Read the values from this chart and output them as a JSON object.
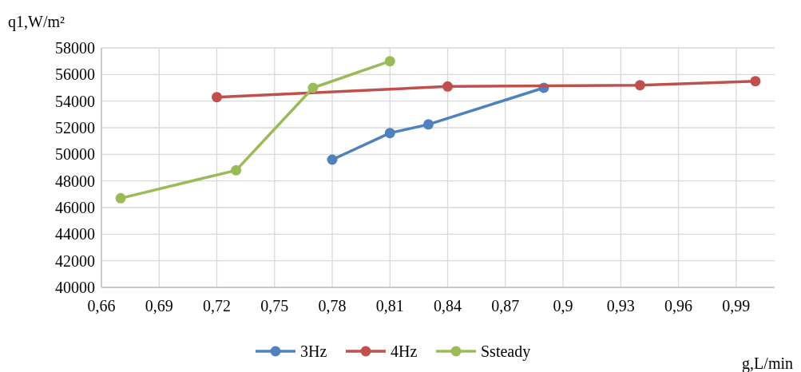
{
  "chart_data": {
    "type": "line",
    "xlabel": "g,L/min",
    "ylabel": "q1,W/m²",
    "xlim": [
      0.66,
      1.01
    ],
    "xticks": [
      {
        "value": 0.66,
        "label": "0,66"
      },
      {
        "value": 0.69,
        "label": "0,69"
      },
      {
        "value": 0.72,
        "label": "0,72"
      },
      {
        "value": 0.75,
        "label": "0,75"
      },
      {
        "value": 0.78,
        "label": "0,78"
      },
      {
        "value": 0.81,
        "label": "0,81"
      },
      {
        "value": 0.84,
        "label": "0,84"
      },
      {
        "value": 0.87,
        "label": "0,87"
      },
      {
        "value": 0.9,
        "label": "0,9"
      },
      {
        "value": 0.93,
        "label": "0,93"
      },
      {
        "value": 0.96,
        "label": "0,96"
      },
      {
        "value": 0.99,
        "label": "0,99"
      }
    ],
    "ylim": [
      40000,
      58000
    ],
    "yticks": [
      40000,
      42000,
      44000,
      46000,
      48000,
      50000,
      52000,
      54000,
      56000,
      58000
    ],
    "grid": true,
    "legend": "bottom",
    "marker": "circle",
    "line_style": "solid",
    "series": [
      {
        "name": "3Hz",
        "color": "#4f81bd",
        "x": [
          0.78,
          0.81,
          0.83,
          0.89
        ],
        "values": [
          49600,
          51600,
          52250,
          55000
        ]
      },
      {
        "name": "4Hz",
        "color": "#c0504d",
        "x": [
          0.72,
          0.84,
          0.94,
          1.0
        ],
        "values": [
          54300,
          55100,
          55200,
          55500
        ]
      },
      {
        "name": "Ssteady",
        "color": "#9bbb59",
        "x": [
          0.67,
          0.73,
          0.77,
          0.81
        ],
        "values": [
          46700,
          48800,
          55000,
          57000
        ]
      }
    ]
  }
}
